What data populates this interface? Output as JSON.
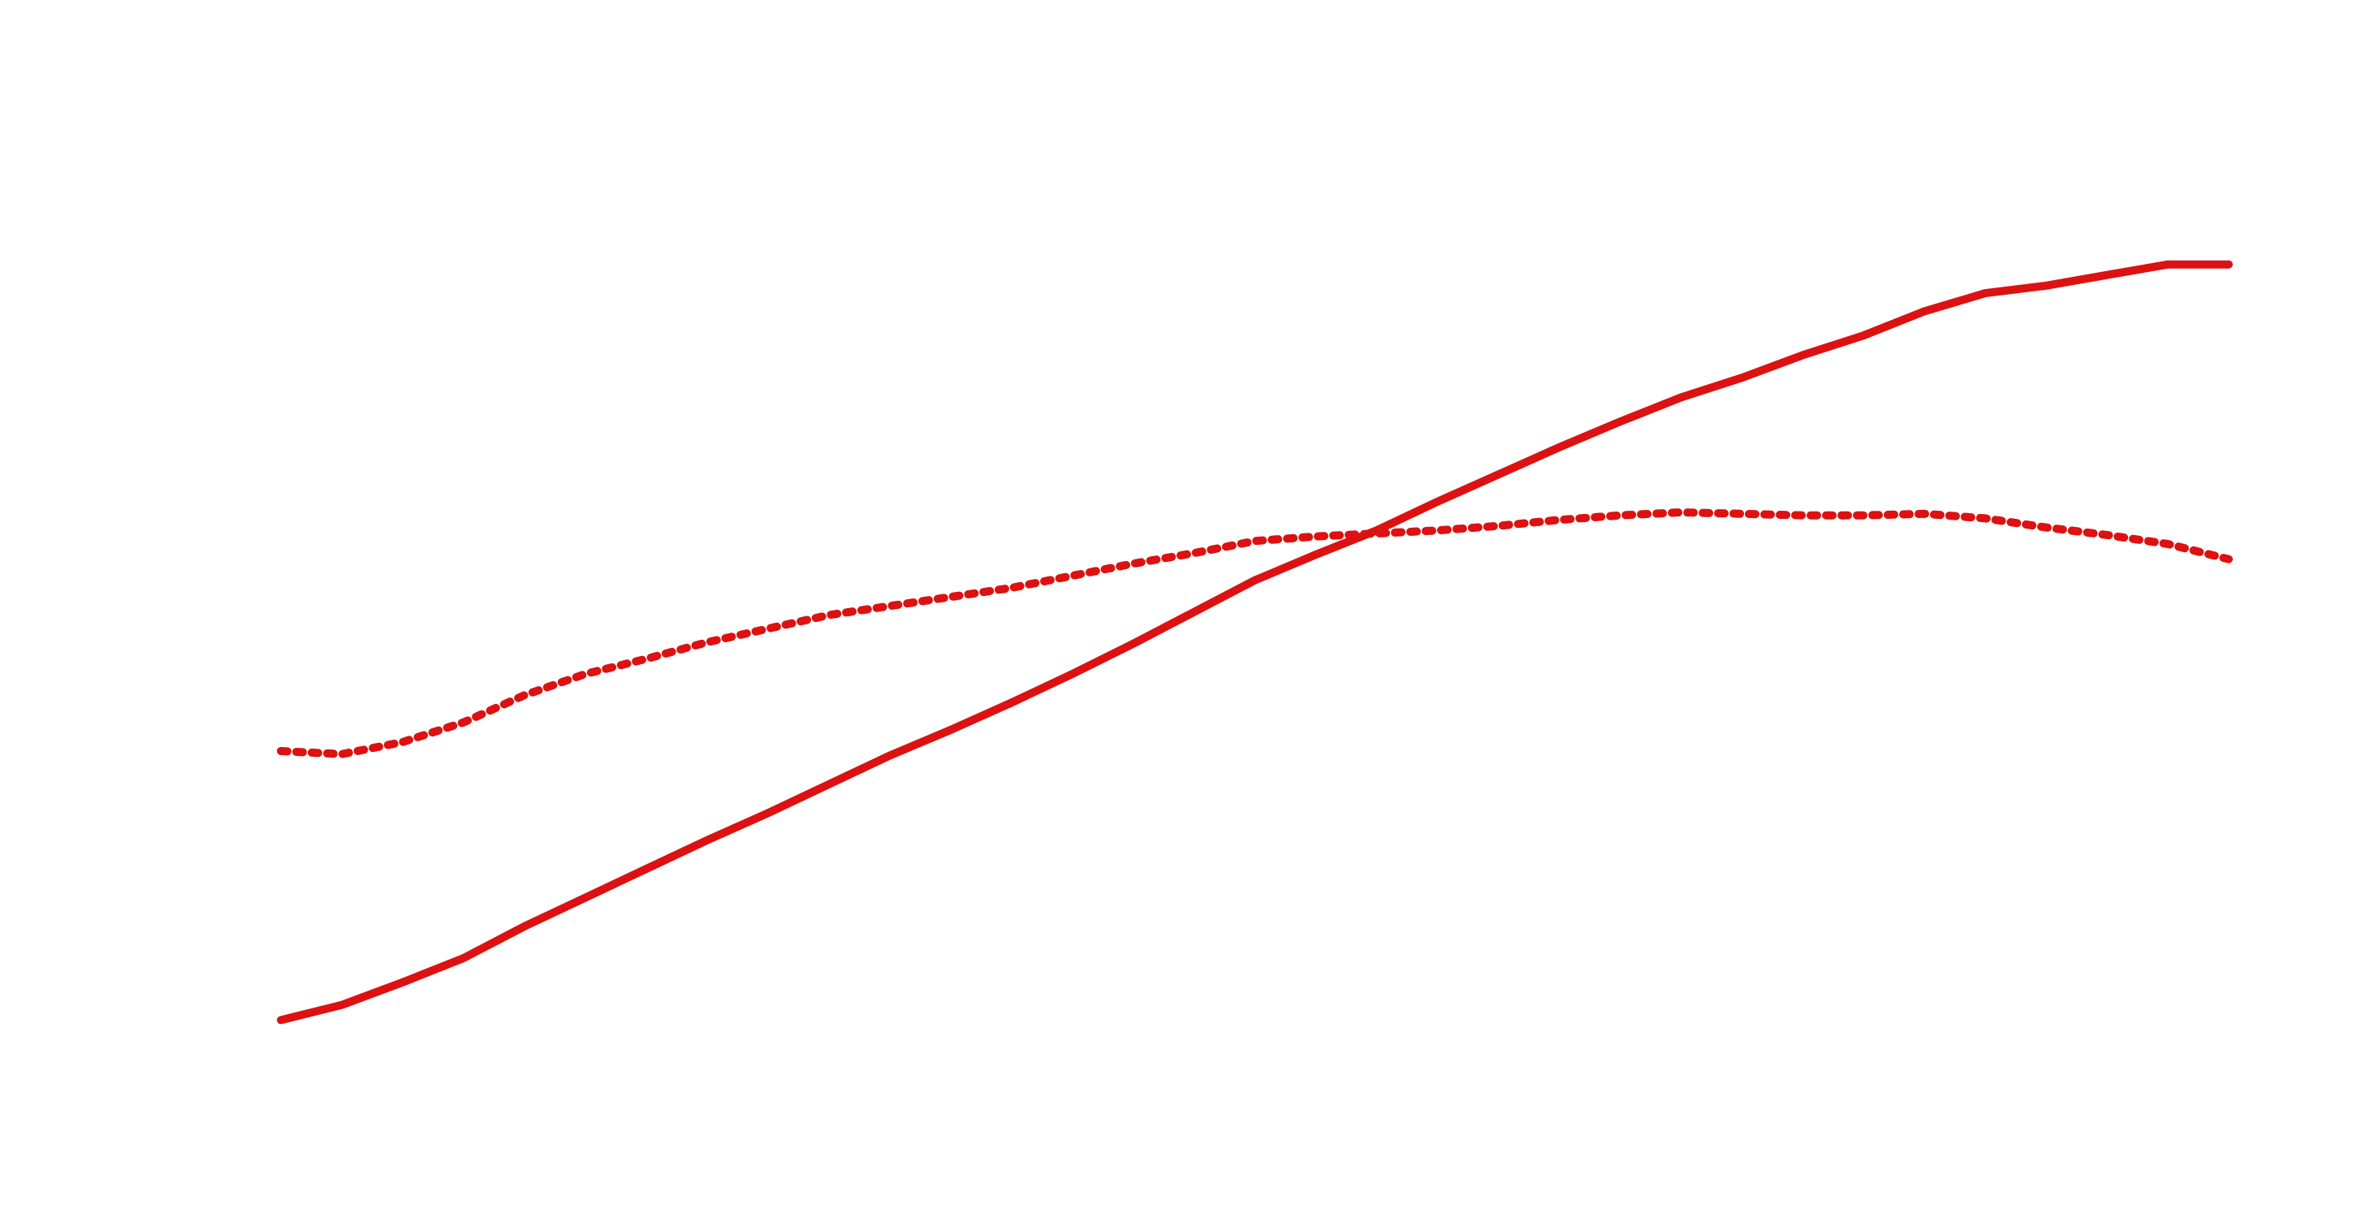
{
  "chart_data": {
    "type": "line",
    "x": [
      0,
      1,
      2,
      3,
      4,
      5,
      6,
      7,
      8,
      9,
      10,
      11,
      12,
      13,
      14,
      15,
      16,
      17,
      18,
      19,
      20,
      21,
      22,
      23,
      24,
      25,
      26,
      27,
      28,
      29,
      30,
      31,
      32
    ],
    "xlim": [
      0,
      32
    ],
    "ylim": [
      0,
      800
    ],
    "series": [
      {
        "color": "#dd1111",
        "style": "solid",
        "values": [
          125,
          135,
          150,
          166,
          187,
          206,
          225,
          244,
          262,
          281,
          300,
          317,
          335,
          354,
          374,
          395,
          416,
          433,
          449,
          468,
          486,
          504,
          521,
          537,
          550,
          565,
          578,
          594,
          606,
          611,
          618,
          625,
          625
        ]
      },
      {
        "color": "#dd1111",
        "style": "dotted",
        "values": [
          303,
          301,
          309,
          322,
          340,
          354,
          364,
          375,
          384,
          393,
          399,
          405,
          411,
          419,
          427,
          434,
          442,
          445,
          447,
          449,
          452,
          456,
          459,
          461,
          460,
          459,
          459,
          460,
          457,
          451,
          446,
          440,
          430
        ]
      }
    ]
  }
}
